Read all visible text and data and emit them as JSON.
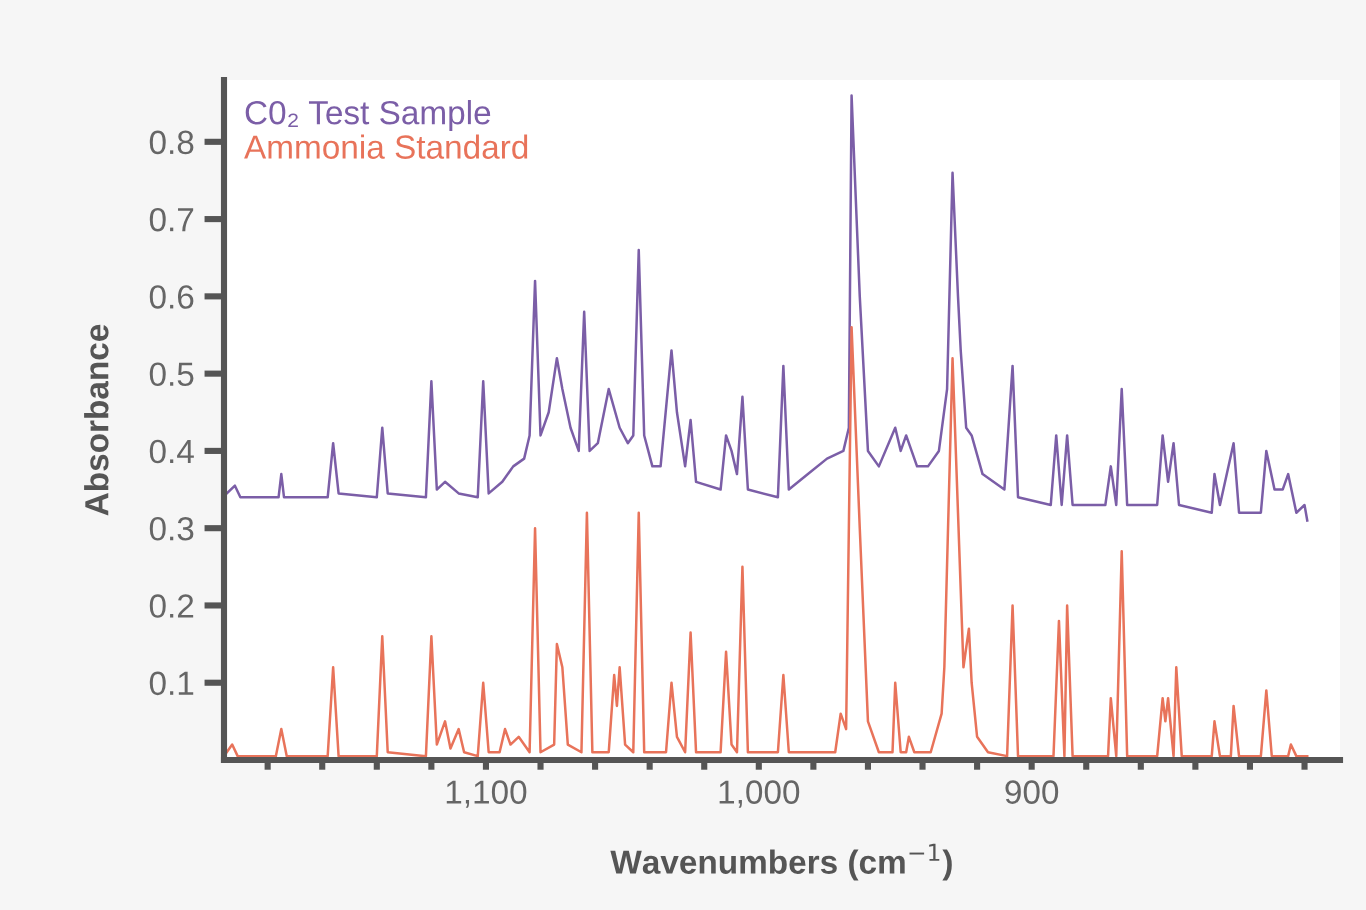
{
  "chart_data": {
    "type": "line",
    "xlabel": "Wavenumbers (cm$^{−1}$)",
    "ylabel": "Absorbance",
    "xlim": [
      1196,
      787
    ],
    "ylim": [
      0,
      0.88
    ],
    "xticks": [
      {
        "value": 1180,
        "label": null
      },
      {
        "value": 1160,
        "label": null
      },
      {
        "value": 1140,
        "label": null
      },
      {
        "value": 1120,
        "label": null
      },
      {
        "value": 1100,
        "label": "1,100"
      },
      {
        "value": 1080,
        "label": null
      },
      {
        "value": 1060,
        "label": null
      },
      {
        "value": 1040,
        "label": null
      },
      {
        "value": 1020,
        "label": null
      },
      {
        "value": 1000,
        "label": "1,000"
      },
      {
        "value": 980,
        "label": null
      },
      {
        "value": 960,
        "label": null
      },
      {
        "value": 940,
        "label": null
      },
      {
        "value": 920,
        "label": null
      },
      {
        "value": 900,
        "label": "900"
      },
      {
        "value": 880,
        "label": null
      },
      {
        "value": 860,
        "label": null
      },
      {
        "value": 840,
        "label": null
      },
      {
        "value": 820,
        "label": null
      },
      {
        "value": 800,
        "label": null
      }
    ],
    "yticks": [
      0.1,
      0.2,
      0.3,
      0.4,
      0.5,
      0.6,
      0.7,
      0.8
    ],
    "grid": false,
    "legend": "top left",
    "marker": "none",
    "line_style": "solid",
    "series": [
      {
        "name": "C0₂ Test Sample",
        "color": "#7b5ea7",
        "x": [
          1195,
          1192,
          1190,
          1176,
          1175,
          1174,
          1158,
          1156,
          1154,
          1140,
          1138,
          1136,
          1122,
          1120,
          1118,
          1115,
          1110,
          1103,
          1101,
          1099,
          1094,
          1090,
          1086,
          1084,
          1082,
          1080,
          1077,
          1074,
          1072,
          1069,
          1066,
          1064,
          1062,
          1059,
          1055,
          1051,
          1048,
          1046,
          1044,
          1042,
          1039,
          1036,
          1032,
          1030,
          1027,
          1025,
          1023,
          1014,
          1012,
          1010,
          1008,
          1006,
          1004,
          993,
          991,
          989,
          982,
          975,
          969,
          967,
          966,
          963,
          960,
          956,
          950,
          948,
          946,
          942,
          938,
          934,
          931,
          929,
          927,
          926,
          924,
          922,
          918,
          910,
          907,
          905,
          893,
          891,
          889,
          887,
          885,
          873,
          871,
          869,
          867,
          865,
          854,
          852,
          850,
          848,
          846,
          834,
          833,
          831,
          826,
          824,
          816,
          814,
          811,
          808,
          806,
          803,
          800,
          799
        ],
        "values": [
          0.345,
          0.355,
          0.34,
          0.34,
          0.37,
          0.34,
          0.34,
          0.41,
          0.345,
          0.34,
          0.43,
          0.345,
          0.34,
          0.49,
          0.35,
          0.36,
          0.345,
          0.34,
          0.49,
          0.345,
          0.36,
          0.38,
          0.39,
          0.42,
          0.62,
          0.42,
          0.45,
          0.52,
          0.48,
          0.43,
          0.4,
          0.58,
          0.4,
          0.41,
          0.48,
          0.43,
          0.41,
          0.42,
          0.66,
          0.42,
          0.38,
          0.38,
          0.53,
          0.45,
          0.38,
          0.44,
          0.36,
          0.35,
          0.42,
          0.4,
          0.37,
          0.47,
          0.35,
          0.34,
          0.51,
          0.35,
          0.37,
          0.39,
          0.4,
          0.43,
          0.86,
          0.6,
          0.4,
          0.38,
          0.43,
          0.4,
          0.42,
          0.38,
          0.38,
          0.4,
          0.48,
          0.76,
          0.6,
          0.53,
          0.43,
          0.42,
          0.37,
          0.35,
          0.51,
          0.34,
          0.33,
          0.42,
          0.33,
          0.42,
          0.33,
          0.33,
          0.38,
          0.33,
          0.48,
          0.33,
          0.33,
          0.42,
          0.36,
          0.41,
          0.33,
          0.32,
          0.37,
          0.33,
          0.41,
          0.32,
          0.32,
          0.4,
          0.35,
          0.35,
          0.37,
          0.32,
          0.33,
          0.31
        ]
      },
      {
        "name": "Ammonia Standard",
        "color": "#e8735a",
        "x": [
          1195,
          1193,
          1191,
          1177,
          1175,
          1173,
          1158,
          1156,
          1154,
          1140,
          1138,
          1136,
          1122,
          1120,
          1118,
          1115,
          1113,
          1110,
          1108,
          1103,
          1101,
          1099,
          1095,
          1093,
          1091,
          1088,
          1084,
          1082,
          1080,
          1075,
          1074,
          1072,
          1070,
          1065,
          1063,
          1061,
          1055,
          1053,
          1052,
          1051,
          1049,
          1046,
          1044,
          1042,
          1034,
          1032,
          1030,
          1027,
          1025,
          1023,
          1014,
          1012,
          1010,
          1008,
          1006,
          1004,
          993,
          991,
          989,
          972,
          970,
          968,
          966,
          963,
          960,
          956,
          951,
          950,
          948,
          946,
          945,
          943,
          937,
          933,
          932,
          929,
          927,
          926,
          925,
          923,
          922,
          920,
          916,
          909,
          907,
          905,
          892,
          890,
          888,
          887,
          885,
          872,
          871,
          869,
          867,
          865,
          854,
          852,
          851,
          850,
          848,
          847,
          845,
          834,
          833,
          831,
          827,
          826,
          824,
          816,
          814,
          812,
          806,
          805,
          803,
          799
        ],
        "values": [
          0.01,
          0.02,
          0.005,
          0.005,
          0.04,
          0.005,
          0.005,
          0.12,
          0.005,
          0.005,
          0.16,
          0.01,
          0.005,
          0.16,
          0.02,
          0.05,
          0.015,
          0.04,
          0.01,
          0.005,
          0.1,
          0.01,
          0.01,
          0.04,
          0.02,
          0.03,
          0.01,
          0.3,
          0.01,
          0.02,
          0.15,
          0.12,
          0.02,
          0.01,
          0.32,
          0.01,
          0.01,
          0.11,
          0.07,
          0.12,
          0.02,
          0.01,
          0.32,
          0.01,
          0.01,
          0.1,
          0.03,
          0.01,
          0.165,
          0.01,
          0.01,
          0.14,
          0.02,
          0.01,
          0.25,
          0.01,
          0.01,
          0.11,
          0.01,
          0.01,
          0.06,
          0.04,
          0.56,
          0.3,
          0.05,
          0.01,
          0.01,
          0.1,
          0.01,
          0.01,
          0.03,
          0.01,
          0.01,
          0.06,
          0.12,
          0.52,
          0.32,
          0.22,
          0.12,
          0.17,
          0.1,
          0.03,
          0.01,
          0.005,
          0.2,
          0.005,
          0.005,
          0.18,
          0.005,
          0.2,
          0.005,
          0.005,
          0.08,
          0.005,
          0.27,
          0.005,
          0.005,
          0.08,
          0.05,
          0.08,
          0.005,
          0.12,
          0.005,
          0.005,
          0.05,
          0.005,
          0.005,
          0.07,
          0.005,
          0.005,
          0.09,
          0.005,
          0.005,
          0.02,
          0.005,
          0.005
        ]
      }
    ]
  }
}
